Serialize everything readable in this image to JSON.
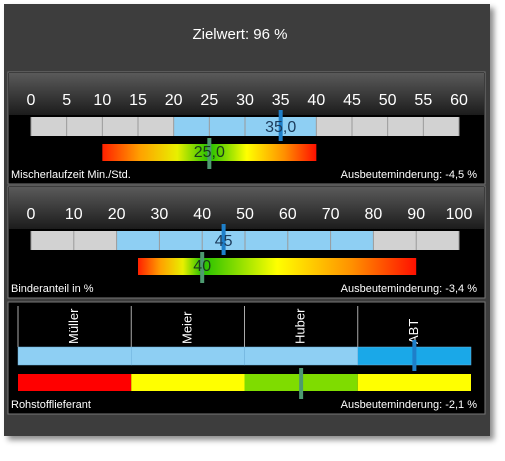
{
  "header": {
    "title": "Zielwert: 96 %"
  },
  "panels": [
    {
      "ticks": [
        0,
        5,
        10,
        15,
        20,
        25,
        30,
        35,
        40,
        45,
        50,
        55,
        60
      ],
      "blue_range": [
        20,
        40
      ],
      "value": 35,
      "value_label": "35,0",
      "gradient_range": [
        10,
        40
      ],
      "target": 25,
      "target_label": "25,0",
      "label": "Mischerlaufzeit Min./Std.",
      "loss": "Ausbeuteminderung: -4,5 %"
    },
    {
      "ticks": [
        0,
        10,
        20,
        30,
        40,
        50,
        60,
        70,
        80,
        90,
        100
      ],
      "blue_range": [
        20,
        80
      ],
      "value": 45,
      "value_label": "45",
      "gradient_range": [
        25,
        90
      ],
      "target": 40,
      "target_label": "40",
      "label": "Binderanteil in %",
      "loss": "Ausbeuteminderung: -3,4 %"
    },
    {
      "categories": [
        "Müller",
        "Meier",
        "Huber",
        "ABT"
      ],
      "segment_colors": [
        "#ff0000",
        "#ffff00",
        "#7fdc00",
        "#ffff00"
      ],
      "actual_index": 3,
      "target_index": 2,
      "label": "Rohstofflieferant",
      "loss": "Ausbeuteminderung: -2,1 %"
    }
  ]
}
